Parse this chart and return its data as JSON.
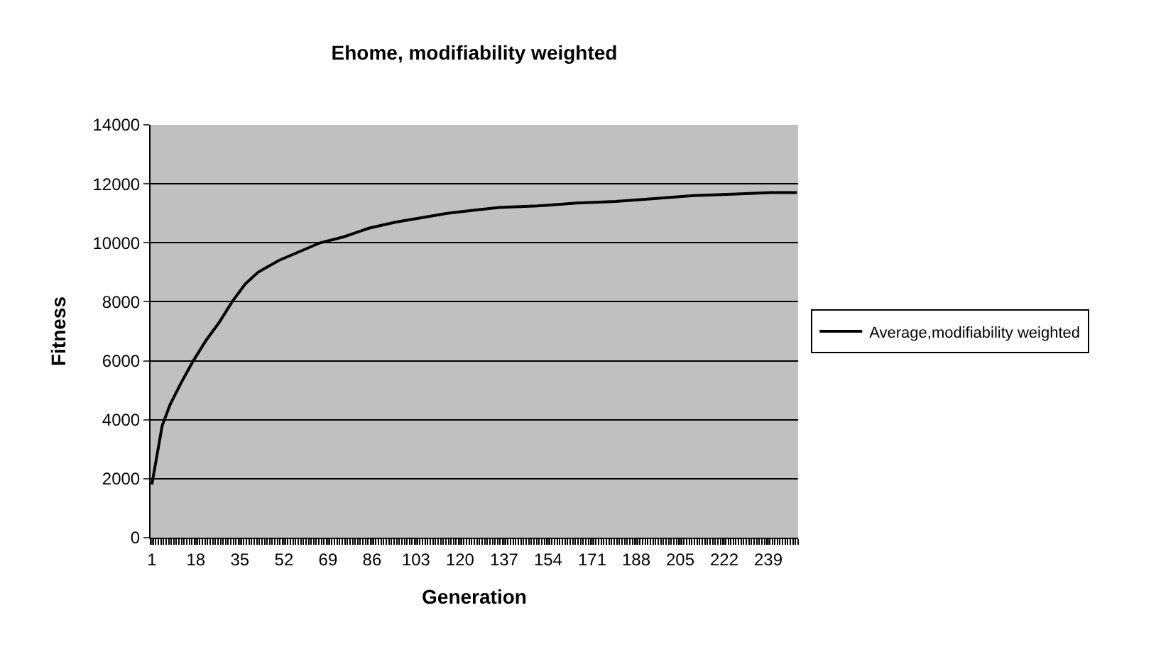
{
  "chart_data": {
    "type": "line",
    "title": "Ehome, modifiability weighted",
    "xlabel": "Generation",
    "ylabel": "Fitness",
    "x": [
      1,
      3,
      5,
      8,
      12,
      17,
      22,
      27,
      32,
      37,
      42,
      50,
      58,
      66,
      75,
      85,
      95,
      105,
      115,
      125,
      135,
      150,
      165,
      180,
      195,
      210,
      225,
      240,
      250
    ],
    "series": [
      {
        "name": "Average,modifiability weighted",
        "color": "#000000",
        "values": [
          1800,
          2800,
          3800,
          4500,
          5200,
          6000,
          6700,
          7300,
          8000,
          8600,
          9000,
          9400,
          9700,
          10000,
          10200,
          10500,
          10700,
          10850,
          11000,
          11100,
          11200,
          11250,
          11350,
          11400,
          11500,
          11600,
          11650,
          11700,
          11700
        ]
      }
    ],
    "xlim": [
      0.5,
      250.5
    ],
    "xticks": [
      1,
      18,
      35,
      52,
      69,
      86,
      103,
      120,
      137,
      154,
      171,
      188,
      205,
      222,
      239
    ],
    "ylim": [
      0,
      14000
    ],
    "yticks": [
      0,
      2000,
      4000,
      6000,
      8000,
      10000,
      12000,
      14000
    ],
    "grid": "y",
    "legend": "right",
    "marker": "none",
    "line_style": "solid"
  }
}
